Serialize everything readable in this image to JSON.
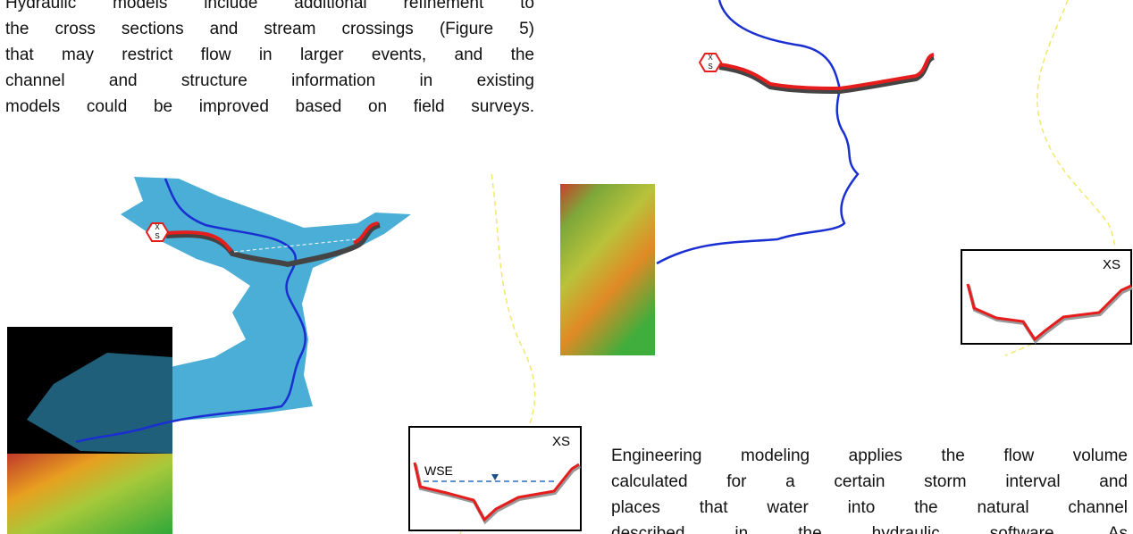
{
  "top_paragraph": {
    "lines": [
      "Hydraulic models include additional refinement to",
      "the cross sections and stream crossings (Figure 5)",
      "that may restrict flow in larger events, and the",
      "channel and structure information in existing",
      "models could be improved based on field surveys."
    ]
  },
  "bottom_paragraph": {
    "lines": [
      "Engineering modeling applies the flow volume",
      "calculated for a certain storm interval and",
      "places that water into the natural channel",
      "described in the hydraulic software. As"
    ]
  },
  "left_figure": {
    "marker": [
      "X",
      "S"
    ],
    "xs_panel": {
      "label": "XS",
      "wse_label": "WSE"
    }
  },
  "right_figure": {
    "marker": [
      "X",
      "S"
    ],
    "xs_panel": {
      "label": "XS"
    }
  }
}
